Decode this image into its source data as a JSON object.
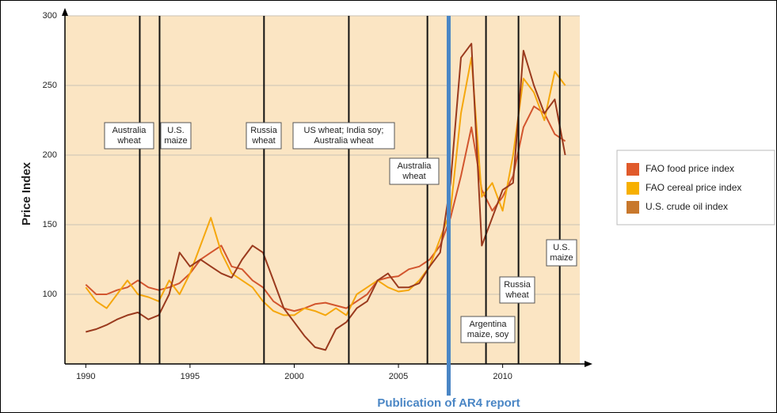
{
  "chart_data": {
    "type": "line",
    "ylabel": "Price Index",
    "x": [
      1990,
      1990.5,
      1991,
      1991.5,
      1992,
      1992.5,
      1993,
      1993.5,
      1994,
      1994.5,
      1995,
      1995.5,
      1996,
      1996.5,
      1997,
      1997.5,
      1998,
      1998.5,
      1999,
      1999.5,
      2000,
      2000.5,
      2001,
      2001.5,
      2002,
      2002.5,
      2003,
      2003.5,
      2004,
      2004.5,
      2005,
      2005.5,
      2006,
      2006.5,
      2007,
      2007.5,
      2008,
      2008.5,
      2009,
      2009.5,
      2010,
      2010.5,
      2011,
      2011.5,
      2012,
      2012.5,
      2013
    ],
    "series": [
      {
        "name": "FAO food price index",
        "color": "#d2552e",
        "values": [
          107,
          100,
          100,
          103,
          105,
          110,
          105,
          103,
          105,
          108,
          115,
          125,
          130,
          135,
          120,
          118,
          110,
          105,
          95,
          90,
          88,
          90,
          93,
          94,
          92,
          90,
          95,
          100,
          110,
          112,
          113,
          118,
          120,
          125,
          135,
          155,
          185,
          220,
          175,
          160,
          170,
          185,
          220,
          235,
          230,
          215,
          210
        ]
      },
      {
        "name": "FAO cereal price index",
        "color": "#f5a70d",
        "values": [
          105,
          95,
          90,
          100,
          110,
          100,
          98,
          95,
          110,
          100,
          115,
          135,
          155,
          130,
          115,
          110,
          105,
          95,
          88,
          85,
          85,
          90,
          88,
          85,
          90,
          85,
          100,
          105,
          110,
          105,
          102,
          103,
          110,
          120,
          140,
          160,
          230,
          270,
          170,
          180,
          160,
          200,
          255,
          245,
          225,
          260,
          250
        ]
      },
      {
        "name": "U.S. crude oil index",
        "color": "#9a3a1e",
        "values": [
          73,
          75,
          78,
          82,
          85,
          87,
          82,
          85,
          100,
          130,
          120,
          125,
          120,
          115,
          112,
          125,
          135,
          130,
          110,
          90,
          80,
          70,
          62,
          60,
          75,
          80,
          90,
          95,
          110,
          115,
          105,
          105,
          108,
          120,
          130,
          180,
          270,
          280,
          135,
          155,
          175,
          180,
          275,
          250,
          230,
          240,
          200
        ]
      }
    ],
    "legend_colors": [
      "#e05a2b",
      "#f7b000",
      "#c8782c"
    ],
    "xlim": [
      1989,
      2013.7
    ],
    "ylim": [
      50,
      300
    ],
    "xticks": [
      1990,
      1995,
      2000,
      2005,
      2010
    ],
    "yticks": [
      100,
      150,
      200,
      250,
      300
    ],
    "grid": true,
    "events": [
      {
        "x": 1992.59,
        "label": [
          "Australia",
          "wheat"
        ]
      },
      {
        "x": 1993.54,
        "label": [
          "U.S.",
          "maize"
        ]
      },
      {
        "x": 1998.55,
        "label": [
          "Russia",
          "wheat"
        ]
      },
      {
        "x": 2002.62,
        "label": [
          "US wheat; India soy;",
          "Australia wheat"
        ]
      },
      {
        "x": 2006.39,
        "label": [
          "Australia",
          "wheat"
        ]
      },
      {
        "x": 2009.2,
        "label": [
          "Argentina",
          "maize, soy"
        ]
      },
      {
        "x": 2010.76,
        "label": [
          "Russia",
          "wheat"
        ]
      },
      {
        "x": 2012.74,
        "label": [
          "U.S.",
          "maize"
        ]
      }
    ],
    "report": {
      "x": 2007.41,
      "label": "Publication of AR4 report",
      "color": "#4a86c5"
    }
  }
}
